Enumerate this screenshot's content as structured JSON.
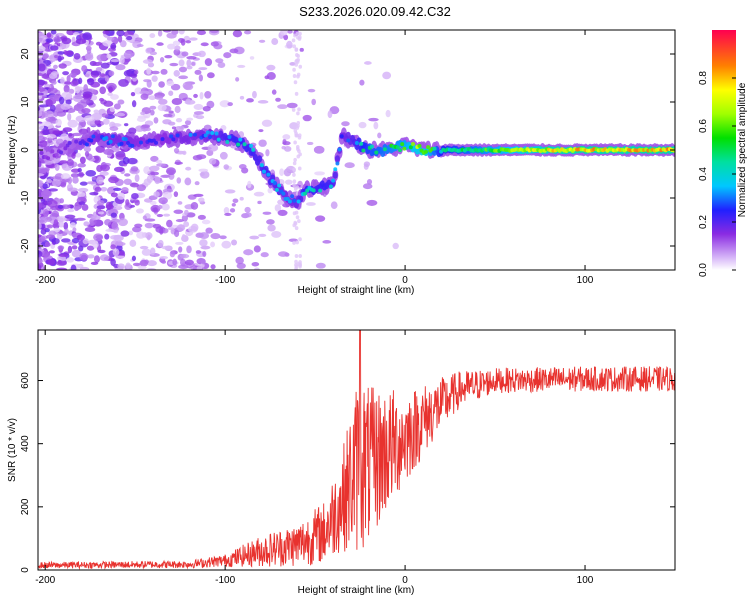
{
  "title": "S233.2026.020.09.42.C32",
  "chart_data": [
    {
      "type": "heatmap",
      "xlabel": "Height of straight line (km)",
      "ylabel": "Frequency (Hz)",
      "xlim": [
        -204,
        150
      ],
      "ylim": [
        -25,
        25
      ],
      "xticks": [
        -200,
        -100,
        0,
        100
      ],
      "xtick_labels": [
        "-200",
        "-100",
        "0",
        "100"
      ],
      "yticks": [
        -20,
        -10,
        0,
        10,
        20
      ],
      "ytick_labels": [
        "-20",
        "-10",
        "0",
        "10",
        "20"
      ],
      "colorbar": {
        "label": "Normalized spectral amplitude",
        "range": [
          0,
          1
        ],
        "ticks": [
          0.0,
          0.2,
          0.4,
          0.6,
          0.8
        ],
        "tick_labels": [
          "0.0",
          "0.2",
          "0.4",
          "0.6",
          "0.8"
        ]
      },
      "ridge": [
        {
          "x": -195,
          "y": -1,
          "a": 0.15
        },
        {
          "x": -185,
          "y": 1,
          "a": 0.2
        },
        {
          "x": -175,
          "y": 2,
          "a": 0.25
        },
        {
          "x": -170,
          "y": 2.5,
          "a": 0.3
        },
        {
          "x": -160,
          "y": 2,
          "a": 0.3
        },
        {
          "x": -150,
          "y": 1.5,
          "a": 0.28
        },
        {
          "x": -140,
          "y": 2,
          "a": 0.25
        },
        {
          "x": -125,
          "y": 2.5,
          "a": 0.3
        },
        {
          "x": -110,
          "y": 3,
          "a": 0.3
        },
        {
          "x": -100,
          "y": 2.5,
          "a": 0.38
        },
        {
          "x": -93,
          "y": 2,
          "a": 0.42
        },
        {
          "x": -85,
          "y": 0,
          "a": 0.4
        },
        {
          "x": -80,
          "y": -3,
          "a": 0.38
        },
        {
          "x": -75,
          "y": -6,
          "a": 0.4
        },
        {
          "x": -70,
          "y": -8,
          "a": 0.35
        },
        {
          "x": -65,
          "y": -10,
          "a": 0.3
        },
        {
          "x": -60,
          "y": -11,
          "a": 0.32
        },
        {
          "x": -55,
          "y": -8,
          "a": 0.45
        },
        {
          "x": -50,
          "y": -8,
          "a": 0.4
        },
        {
          "x": -45,
          "y": -7.5,
          "a": 0.42
        },
        {
          "x": -40,
          "y": -7,
          "a": 0.38
        },
        {
          "x": -35,
          "y": 3,
          "a": 0.3
        },
        {
          "x": -30,
          "y": 2,
          "a": 0.35
        },
        {
          "x": -20,
          "y": 0,
          "a": 0.5
        },
        {
          "x": -10,
          "y": 0,
          "a": 0.55
        },
        {
          "x": 0,
          "y": 1,
          "a": 0.6
        },
        {
          "x": 10,
          "y": 0,
          "a": 0.7
        },
        {
          "x": 20,
          "y": 0,
          "a": 0.45
        },
        {
          "x": 40,
          "y": 0,
          "a": 0.55
        },
        {
          "x": 60,
          "y": 0,
          "a": 0.65
        },
        {
          "x": 80,
          "y": 0,
          "a": 0.75
        },
        {
          "x": 100,
          "y": 0,
          "a": 0.8
        },
        {
          "x": 120,
          "y": 0,
          "a": 0.78
        },
        {
          "x": 140,
          "y": 0,
          "a": 0.8
        }
      ]
    },
    {
      "type": "line",
      "xlabel": "Height of straight line (km)",
      "ylabel": "SNR (10 * v/v)",
      "xlim": [
        -204,
        150
      ],
      "ylim": [
        0,
        760
      ],
      "xticks": [
        -200,
        -100,
        0,
        100
      ],
      "xtick_labels": [
        "-200",
        "-100",
        "0",
        "100"
      ],
      "yticks": [
        0,
        200,
        400,
        600
      ],
      "ytick_labels": [
        "0",
        "200",
        "400",
        "600"
      ],
      "color": "#e8322e",
      "envelope": [
        {
          "x": -204,
          "mean": 15,
          "amp": 10
        },
        {
          "x": -120,
          "mean": 18,
          "amp": 12
        },
        {
          "x": -100,
          "mean": 30,
          "amp": 20
        },
        {
          "x": -80,
          "mean": 60,
          "amp": 50
        },
        {
          "x": -60,
          "mean": 80,
          "amp": 70
        },
        {
          "x": -45,
          "mean": 120,
          "amp": 100
        },
        {
          "x": -35,
          "mean": 220,
          "amp": 160
        },
        {
          "x": -25,
          "mean": 350,
          "amp": 300
        },
        {
          "x": -20,
          "mean": 330,
          "amp": 250
        },
        {
          "x": -10,
          "mean": 380,
          "amp": 200
        },
        {
          "x": 0,
          "mean": 420,
          "amp": 150
        },
        {
          "x": 15,
          "mean": 500,
          "amp": 100
        },
        {
          "x": 30,
          "mean": 570,
          "amp": 60
        },
        {
          "x": 50,
          "mean": 600,
          "amp": 40
        },
        {
          "x": 100,
          "mean": 605,
          "amp": 40
        },
        {
          "x": 150,
          "mean": 605,
          "amp": 40
        }
      ],
      "peak": {
        "x": -25,
        "y": 760
      }
    }
  ]
}
